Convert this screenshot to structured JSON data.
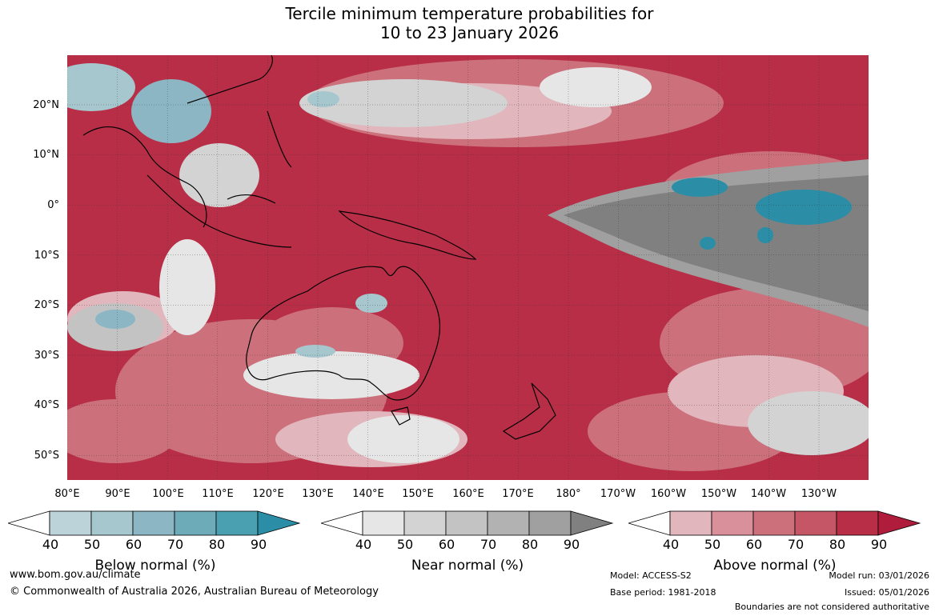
{
  "title": {
    "line1": "Tercile minimum temperature probabilities for",
    "line2": "10 to 23 January 2026"
  },
  "map": {
    "lat_labels": [
      "20°N",
      "10°N",
      "0°",
      "10°S",
      "20°S",
      "30°S",
      "40°S",
      "50°S"
    ],
    "lon_labels": [
      "80°E",
      "90°E",
      "100°E",
      "110°E",
      "120°E",
      "130°E",
      "140°E",
      "150°E",
      "160°E",
      "170°E",
      "180°",
      "170°W",
      "160°W",
      "150°W",
      "140°W",
      "130°W"
    ]
  },
  "legend": {
    "ticks": [
      "40",
      "50",
      "60",
      "70",
      "80",
      "90"
    ],
    "below": {
      "title": "Below normal (%)",
      "colors": [
        "#ffffff",
        "#bcd3da",
        "#a6c7cd",
        "#8cb6c3",
        "#6eabb8",
        "#4aa0b1",
        "#2b8ea6"
      ]
    },
    "near": {
      "title": "Near normal (%)",
      "colors": [
        "#ffffff",
        "#e6e6e6",
        "#d3d3d3",
        "#c3c3c3",
        "#b2b2b2",
        "#a0a0a0",
        "#808080"
      ]
    },
    "above": {
      "title": "Above normal (%)",
      "colors": [
        "#ffffff",
        "#e1b6bd",
        "#d9909a",
        "#cc717c",
        "#c45665",
        "#b82e47",
        "#b01c3b"
      ]
    }
  },
  "footer": {
    "website": "www.bom.gov.au/climate",
    "copyright": "© Commonwealth of Australia 2026, Australian Bureau of Meteorology",
    "model": "Model: ACCESS-S2",
    "base_period": "Base period: 1981-2018",
    "model_run": "Model run: 03/01/2026",
    "issued": "Issued: 05/01/2026",
    "disclaimer": "Boundaries are not considered authoritative"
  }
}
